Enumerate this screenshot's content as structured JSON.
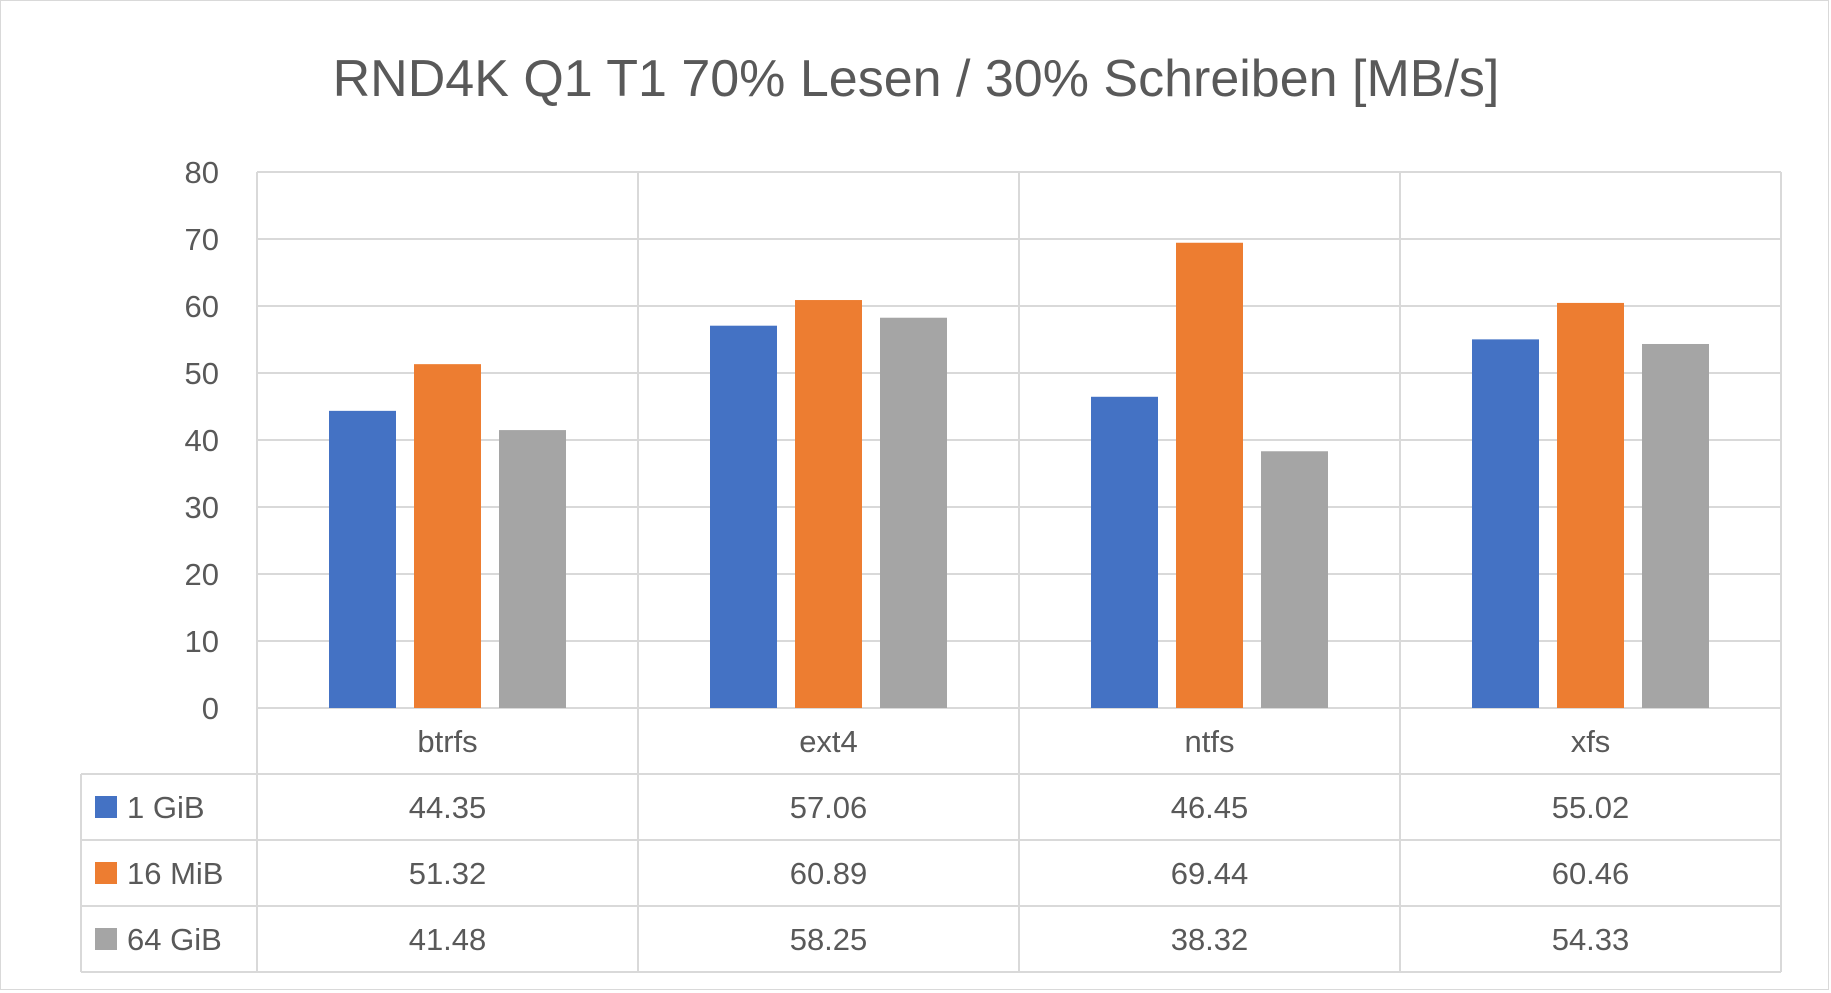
{
  "chart_data": {
    "type": "bar",
    "title": "RND4K Q1 T1 70% Lesen / 30% Schreiben [MB/s]",
    "xlabel": "",
    "ylabel": "",
    "ylim": [
      0,
      80
    ],
    "yticks": [
      0,
      10,
      20,
      30,
      40,
      50,
      60,
      70,
      80
    ],
    "grid": true,
    "legend": "data-table",
    "categories": [
      "btrfs",
      "ext4",
      "ntfs",
      "xfs"
    ],
    "series": [
      {
        "name": "1 GiB",
        "color": "#4472c4",
        "values": [
          44.35,
          57.06,
          46.45,
          55.02
        ],
        "labels": [
          "44.35",
          "57.06",
          "46.45",
          "55.02"
        ]
      },
      {
        "name": "16 MiB",
        "color": "#ed7d31",
        "values": [
          51.32,
          60.89,
          69.44,
          60.46
        ],
        "labels": [
          "51.32",
          "60.89",
          "69.44",
          "60.46"
        ]
      },
      {
        "name": "64 GiB",
        "color": "#a5a5a5",
        "values": [
          41.48,
          58.25,
          38.32,
          54.33
        ],
        "labels": [
          "41.48",
          "58.25",
          "38.32",
          "54.33"
        ]
      }
    ]
  }
}
